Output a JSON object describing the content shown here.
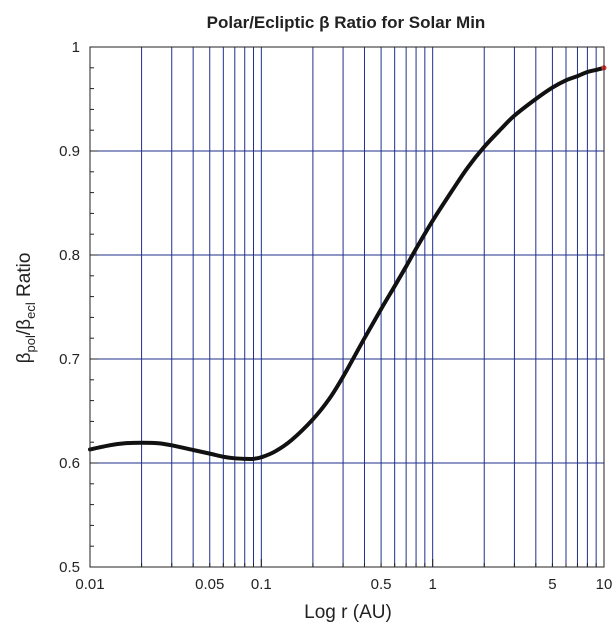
{
  "chart_data": {
    "type": "line",
    "title": "Polar/Ecliptic β Ratio for Solar Min",
    "xlabel": "Log r (AU)",
    "ylabel": {
      "beta1": "β",
      "sub1": "pol",
      "slash": "/",
      "beta2": "β",
      "sub2": "ecl",
      "rest": " Ratio"
    },
    "x_scale": "log",
    "xlim": [
      0.01,
      10
    ],
    "ylim": [
      0.5,
      1.0
    ],
    "grid": true,
    "grid_color": "#1f2f8f",
    "line_color": "#111111",
    "endpoint_color": "#e8352b",
    "x_ticks": [
      {
        "value": 0.01,
        "label": "0.01"
      },
      {
        "value": 0.05,
        "label": "0.05"
      },
      {
        "value": 0.1,
        "label": "0.1"
      },
      {
        "value": 0.5,
        "label": "0.5"
      },
      {
        "value": 1,
        "label": "1"
      },
      {
        "value": 5,
        "label": "5"
      },
      {
        "value": 10,
        "label": "10"
      }
    ],
    "y_ticks": [
      {
        "value": 0.5,
        "label": "0.5"
      },
      {
        "value": 0.6,
        "label": "0.6"
      },
      {
        "value": 0.7,
        "label": "0.7"
      },
      {
        "value": 0.8,
        "label": "0.8"
      },
      {
        "value": 0.9,
        "label": "0.9"
      },
      {
        "value": 1.0,
        "label": "1"
      }
    ],
    "series": [
      {
        "x": [
          0.01,
          0.013,
          0.016,
          0.02,
          0.025,
          0.03,
          0.04,
          0.05,
          0.06,
          0.07,
          0.08,
          0.09,
          0.1,
          0.12,
          0.15,
          0.2,
          0.25,
          0.3,
          0.4,
          0.5,
          0.6,
          0.7,
          0.8,
          1.0,
          1.3,
          1.6,
          2.0,
          2.5,
          3.0,
          4.0,
          5.0,
          6.0,
          7.0,
          8.0,
          9.0,
          10.0
        ],
        "y": [
          0.613,
          0.617,
          0.619,
          0.6195,
          0.619,
          0.617,
          0.6125,
          0.609,
          0.606,
          0.6045,
          0.604,
          0.604,
          0.6055,
          0.611,
          0.622,
          0.642,
          0.662,
          0.683,
          0.72,
          0.748,
          0.77,
          0.789,
          0.806,
          0.833,
          0.862,
          0.884,
          0.904,
          0.921,
          0.934,
          0.95,
          0.961,
          0.968,
          0.972,
          0.976,
          0.978,
          0.98
        ]
      }
    ]
  }
}
